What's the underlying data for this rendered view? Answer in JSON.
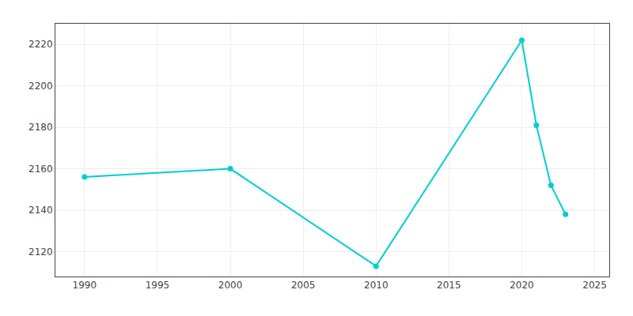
{
  "chart_data": {
    "type": "line",
    "x": [
      1990,
      2000,
      2010,
      2020,
      2021,
      2022,
      2023
    ],
    "values": [
      2156,
      2160,
      2113,
      2222,
      2181,
      2152,
      2138
    ],
    "color": "#00CED1",
    "marker": "circle",
    "line_style": "solid",
    "xlim": [
      1988,
      2026
    ],
    "ylim": [
      2108,
      2230
    ],
    "xticks": [
      1990,
      1995,
      2000,
      2005,
      2010,
      2015,
      2020,
      2025
    ],
    "yticks": [
      2120,
      2140,
      2160,
      2180,
      2200,
      2220
    ],
    "grid": true
  }
}
